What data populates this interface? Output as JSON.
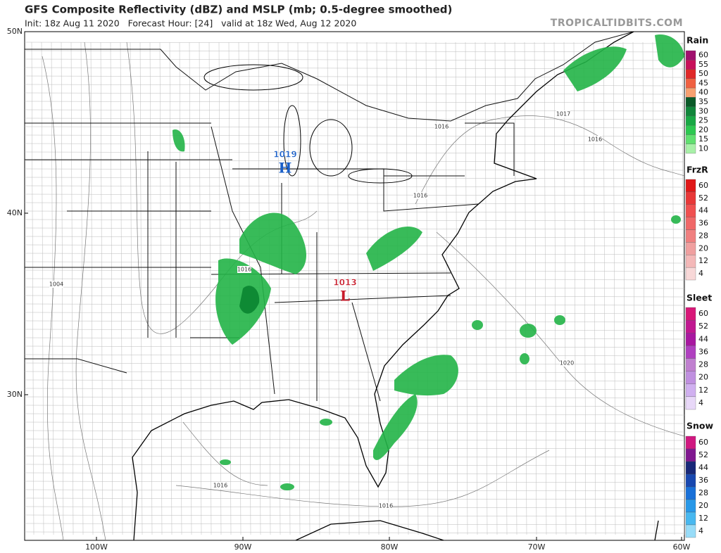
{
  "header": {
    "title": "GFS Composite Reflectivity (dBZ) and MSLP (mb; 0.5-degree smoothed)",
    "subtitle": "Init: 18z Aug 11 2020   Forecast Hour: [24]   valid at 18z Wed, Aug 12 2020",
    "credit": "TROPICALTIDBITS.COM"
  },
  "map": {
    "lat_labels": [
      "50N",
      "40N",
      "30N"
    ],
    "lon_labels": [
      "100W",
      "90W",
      "80W",
      "70W",
      "60W"
    ],
    "pressure_centers": [
      {
        "value": "1019",
        "symbol": "H"
      },
      {
        "value": "1013",
        "symbol": "L"
      }
    ],
    "isobar_labels": [
      "1016",
      "1016",
      "1016",
      "1004",
      "1017",
      "1016",
      "1020",
      "1016",
      "1016"
    ]
  },
  "legend": [
    {
      "title": "Rain",
      "levels": [
        "60",
        "55",
        "50",
        "45",
        "40",
        "35",
        "30",
        "25",
        "20",
        "15",
        "10"
      ],
      "colors": [
        "#a0106e",
        "#c8105a",
        "#e02828",
        "#f06040",
        "#f8a070",
        "#0a5a28",
        "#10863a",
        "#18a844",
        "#2cc850",
        "#60e070",
        "#a8f0a8"
      ]
    },
    {
      "title": "FrzR",
      "levels": [
        "60",
        "52",
        "44",
        "36",
        "28",
        "20",
        "12",
        "4"
      ],
      "colors": [
        "#e01818",
        "#e83838",
        "#f05050",
        "#f06868",
        "#f08080",
        "#f0a0a0",
        "#f4b8b8",
        "#f8d8d8"
      ]
    },
    {
      "title": "Sleet",
      "levels": [
        "60",
        "52",
        "44",
        "36",
        "28",
        "20",
        "12",
        "4"
      ],
      "colors": [
        "#d81878",
        "#c01890",
        "#a818a0",
        "#b040c0",
        "#c080d0",
        "#c090e0",
        "#d0b0f0",
        "#e8d8f8"
      ]
    },
    {
      "title": "Snow",
      "levels": [
        "60",
        "52",
        "44",
        "36",
        "28",
        "20",
        "12",
        "4"
      ],
      "colors": [
        "#d01880",
        "#801890",
        "#182878",
        "#1848b0",
        "#1870d8",
        "#2898e8",
        "#48b8f0",
        "#98dcf8"
      ]
    }
  ]
}
